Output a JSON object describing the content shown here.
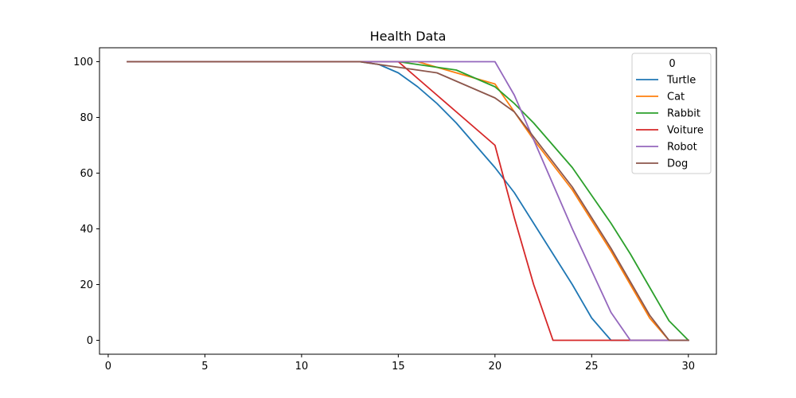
{
  "chart_data": {
    "type": "line",
    "title": "Health Data",
    "xlabel": "",
    "ylabel": "",
    "xlim": [
      -0.45,
      31.45
    ],
    "ylim": [
      -5,
      105
    ],
    "xticks": [
      0,
      5,
      10,
      15,
      20,
      25,
      30
    ],
    "yticks": [
      0,
      20,
      40,
      60,
      80,
      100
    ],
    "legend": {
      "title": "0",
      "position": "top-right"
    },
    "x": [
      1,
      2,
      3,
      4,
      5,
      6,
      7,
      8,
      9,
      10,
      11,
      12,
      13,
      14,
      15,
      16,
      17,
      18,
      19,
      20,
      21,
      22,
      23,
      24,
      25,
      26,
      27,
      28,
      29,
      30
    ],
    "series": [
      {
        "name": "Turtle",
        "color": "#1f77b4",
        "values": [
          100,
          100,
          100,
          100,
          100,
          100,
          100,
          100,
          100,
          100,
          100,
          100,
          100,
          99,
          96,
          91,
          85,
          78,
          70,
          62,
          53,
          42,
          31,
          20,
          8,
          0,
          0,
          0,
          0,
          0
        ]
      },
      {
        "name": "Cat",
        "color": "#ff7f0e",
        "values": [
          100,
          100,
          100,
          100,
          100,
          100,
          100,
          100,
          100,
          100,
          100,
          100,
          100,
          100,
          100,
          100,
          98,
          96,
          94,
          92,
          82,
          72,
          63,
          54,
          43,
          32,
          20,
          8,
          0,
          0
        ]
      },
      {
        "name": "Rabbit",
        "color": "#2ca02c",
        "values": [
          100,
          100,
          100,
          100,
          100,
          100,
          100,
          100,
          100,
          100,
          100,
          100,
          100,
          100,
          100,
          99,
          98,
          97,
          94,
          91,
          85,
          78,
          70,
          62,
          52,
          42,
          31,
          19,
          7,
          0
        ]
      },
      {
        "name": "Voiture",
        "color": "#d62728",
        "values": [
          100,
          100,
          100,
          100,
          100,
          100,
          100,
          100,
          100,
          100,
          100,
          100,
          100,
          100,
          100,
          94,
          88,
          82,
          76,
          70,
          44,
          20,
          0,
          0,
          0,
          0,
          0,
          0,
          0,
          0
        ]
      },
      {
        "name": "Robot",
        "color": "#9467bd",
        "values": [
          100,
          100,
          100,
          100,
          100,
          100,
          100,
          100,
          100,
          100,
          100,
          100,
          100,
          100,
          100,
          100,
          100,
          100,
          100,
          100,
          88,
          72,
          56,
          40,
          25,
          10,
          0,
          0,
          0,
          0
        ]
      },
      {
        "name": "Dog",
        "color": "#8c564b",
        "values": [
          100,
          100,
          100,
          100,
          100,
          100,
          100,
          100,
          100,
          100,
          100,
          100,
          100,
          99,
          98,
          97,
          96,
          93,
          90,
          87,
          82,
          73,
          64,
          55,
          44,
          33,
          21,
          9,
          0,
          0
        ]
      }
    ]
  }
}
